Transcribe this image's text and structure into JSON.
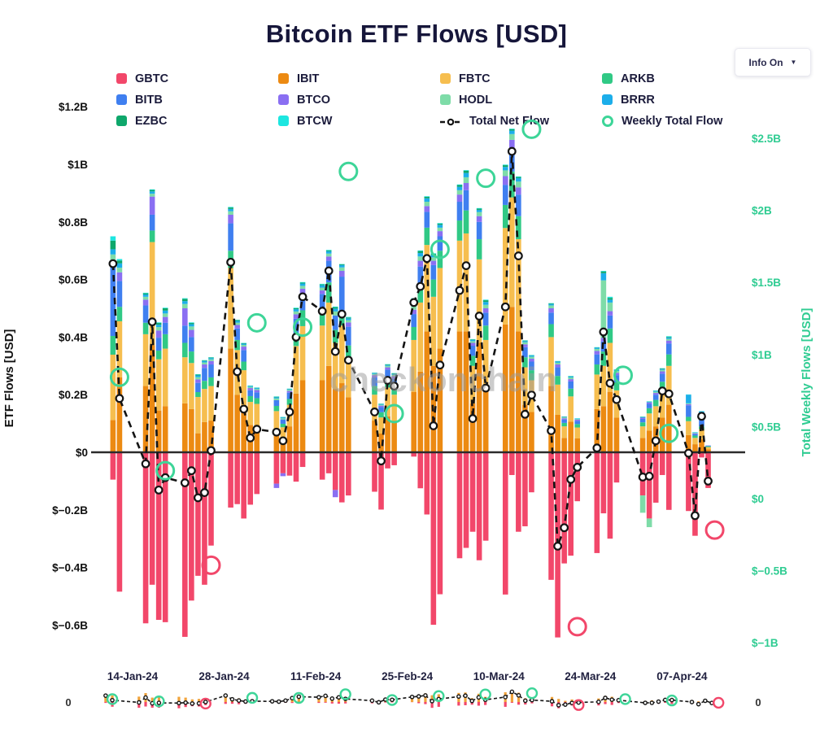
{
  "header": {
    "title": "Bitcoin ETF Flows [USD]",
    "info_button": "Info On",
    "dropdown_arrow": "▼"
  },
  "watermark": "checkonchain",
  "colors": {
    "gbtc": "#F2476A",
    "ibit": "#EC8A12",
    "fbtc": "#F6BE4F",
    "arkb": "#30C985",
    "bitb": "#3F7FF0",
    "btco": "#8A6FF2",
    "hodl": "#7EDCA8",
    "brrr": "#1CAEEA",
    "ezbc": "#0EA76B",
    "btcw": "#1DE6E0",
    "net_line": "#141414",
    "weekly_positive": "#3DD598",
    "weekly_negative": "#F2476A",
    "right_axis_text": "#2FCC92",
    "dark_text": "#20203F",
    "watermark_gray": "#9a9a9a"
  },
  "legend": {
    "items": [
      {
        "label": "GBTC",
        "type": "square",
        "color": "#F2476A"
      },
      {
        "label": "IBIT",
        "type": "square",
        "color": "#EC8A12"
      },
      {
        "label": "FBTC",
        "type": "square",
        "color": "#F6BE4F"
      },
      {
        "label": "ARKB",
        "type": "square",
        "color": "#30C985"
      },
      {
        "label": "BITB",
        "type": "square",
        "color": "#3F7FF0"
      },
      {
        "label": "BTCO",
        "type": "square",
        "color": "#8A6FF2"
      },
      {
        "label": "HODL",
        "type": "square",
        "color": "#7EDCA8"
      },
      {
        "label": "BRRR",
        "type": "square",
        "color": "#1CAEEA"
      },
      {
        "label": "EZBC",
        "type": "square",
        "color": "#0EA76B"
      },
      {
        "label": "BTCW",
        "type": "square",
        "color": "#1DE6E0"
      },
      {
        "label": "Total Net Flow",
        "type": "line",
        "color": "#141414"
      },
      {
        "label": "Weekly Total Flow",
        "type": "circle",
        "color": "#3DD598"
      }
    ]
  },
  "navigator": {
    "left_label": "0",
    "right_label": "0"
  },
  "chart_data": {
    "type": "combo",
    "title": "Bitcoin ETF Flows [USD]",
    "units": "millions USD",
    "left_axis": {
      "title": "ETF Flows [USD]",
      "ticks": [
        {
          "label": "$1.2B",
          "value": 1200
        },
        {
          "label": "$1B",
          "value": 1000
        },
        {
          "label": "$0.8B",
          "value": 800
        },
        {
          "label": "$0.6B",
          "value": 600
        },
        {
          "label": "$0.4B",
          "value": 400
        },
        {
          "label": "$0.2B",
          "value": 200
        },
        {
          "label": "$0",
          "value": 0
        },
        {
          "label": "$−0.2B",
          "value": -200
        },
        {
          "label": "$−0.4B",
          "value": -400
        },
        {
          "label": "$−0.6B",
          "value": -600
        }
      ]
    },
    "right_axis": {
      "title": "Total Weekly Flows [USD]",
      "ticks": [
        {
          "label": "$2.5B",
          "value": 2500
        },
        {
          "label": "$2B",
          "value": 2000
        },
        {
          "label": "$1.5B",
          "value": 1500
        },
        {
          "label": "$1B",
          "value": 1000
        },
        {
          "label": "$0.5B",
          "value": 500
        },
        {
          "label": "$0",
          "value": 0
        },
        {
          "label": "$−0.5B",
          "value": -500
        },
        {
          "label": "$−1B",
          "value": -1000
        }
      ]
    },
    "x_axis": {
      "ticks": [
        {
          "label": "14-Jan-24",
          "date": "2024-01-14"
        },
        {
          "label": "28-Jan-24",
          "date": "2024-01-28"
        },
        {
          "label": "11-Feb-24",
          "date": "2024-02-11"
        },
        {
          "label": "25-Feb-24",
          "date": "2024-02-25"
        },
        {
          "label": "10-Mar-24",
          "date": "2024-03-10"
        },
        {
          "label": "24-Mar-24",
          "date": "2024-03-24"
        },
        {
          "label": "07-Apr-24",
          "date": "2024-04-07"
        }
      ]
    },
    "stack_order": [
      "gbtc",
      "ibit",
      "fbtc",
      "arkb",
      "bitb",
      "btco",
      "hodl",
      "brrr",
      "ezbc",
      "btcw"
    ],
    "days_columns": [
      "date",
      "gbtc",
      "ibit",
      "fbtc",
      "arkb",
      "bitb",
      "btco",
      "hodl",
      "brrr",
      "ezbc",
      "btcw",
      "net"
    ],
    "days": [
      [
        "2024-01-11",
        -95,
        112,
        227,
        65,
        238,
        25,
        20,
        18,
        30,
        15,
        655
      ],
      [
        "2024-01-12",
        -484,
        260,
        195,
        50,
        90,
        30,
        16,
        15,
        10,
        5,
        187
      ],
      [
        "2024-01-16",
        -594,
        230,
        180,
        40,
        60,
        20,
        10,
        8,
        4,
        2,
        -40
      ],
      [
        "2024-01-17",
        -460,
        372,
        358,
        40,
        55,
        63,
        10,
        8,
        5,
        2,
        453
      ],
      [
        "2024-01-18",
        -582,
        145,
        178,
        30,
        45,
        25,
        12,
        8,
        6,
        2,
        -131
      ],
      [
        "2024-01-19",
        -590,
        160,
        200,
        50,
        40,
        20,
        12,
        10,
        8,
        2,
        -88
      ],
      [
        "2024-01-22",
        -641,
        170,
        160,
        50,
        60,
        60,
        15,
        10,
        8,
        2,
        -106
      ],
      [
        "2024-01-23",
        -515,
        150,
        160,
        40,
        50,
        25,
        12,
        8,
        4,
        2,
        -64
      ],
      [
        "2024-01-24",
        -429,
        66,
        126,
        17,
        32,
        12,
        8,
        6,
        3,
        1,
        -158
      ],
      [
        "2024-01-25",
        -460,
        105,
        115,
        28,
        45,
        12,
        7,
        5,
        2,
        1,
        -140
      ],
      [
        "2024-01-26",
        -324,
        110,
        120,
        30,
        45,
        12,
        6,
        4,
        2,
        1,
        6
      ],
      [
        "2024-01-29",
        -192,
        360,
        280,
        60,
        95,
        30,
        12,
        8,
        5,
        2,
        660
      ],
      [
        "2024-01-30",
        -180,
        200,
        155,
        35,
        40,
        12,
        8,
        6,
        3,
        1,
        280
      ],
      [
        "2024-01-31",
        -230,
        160,
        125,
        30,
        40,
        12,
        6,
        4,
        2,
        1,
        150
      ],
      [
        "2024-02-01",
        -182,
        95,
        80,
        20,
        20,
        8,
        4,
        3,
        1,
        1,
        50
      ],
      [
        "2024-02-02",
        -145,
        90,
        78,
        20,
        20,
        8,
        4,
        3,
        1,
        1,
        80
      ],
      [
        "2024-02-05",
        -109,
        75,
        68,
        18,
        20,
        -15,
        6,
        4,
        2,
        1,
        70
      ],
      [
        "2024-02-06",
        -73,
        45,
        42,
        12,
        15,
        -10,
        4,
        3,
        1,
        1,
        40
      ],
      [
        "2024-02-07",
        -81,
        90,
        75,
        20,
        22,
        6,
        4,
        2,
        1,
        1,
        140
      ],
      [
        "2024-02-08",
        -102,
        204,
        165,
        45,
        50,
        15,
        10,
        8,
        3,
        2,
        400
      ],
      [
        "2024-02-09",
        -51,
        250,
        188,
        55,
        60,
        15,
        10,
        8,
        3,
        2,
        540
      ],
      [
        "2024-02-12",
        -95,
        250,
        190,
        55,
        55,
        12,
        10,
        8,
        3,
        2,
        490
      ],
      [
        "2024-02-13",
        -73,
        300,
        220,
        70,
        75,
        15,
        10,
        8,
        3,
        2,
        630
      ],
      [
        "2024-02-14",
        -131,
        220,
        160,
        45,
        50,
        -25,
        14,
        10,
        5,
        2,
        350
      ],
      [
        "2024-02-15",
        -174,
        240,
        200,
        50,
        120,
        20,
        12,
        8,
        3,
        1,
        480
      ],
      [
        "2024-02-16",
        -150,
        191,
        140,
        40,
        65,
        15,
        8,
        6,
        3,
        2,
        320
      ],
      [
        "2024-02-20",
        -137,
        110,
        90,
        30,
        30,
        8,
        4,
        3,
        1,
        1,
        140
      ],
      [
        "2024-02-21",
        -199,
        65,
        56,
        18,
        18,
        5,
        3,
        2,
        1,
        1,
        -30
      ],
      [
        "2024-02-22",
        -56,
        125,
        100,
        30,
        32,
        8,
        5,
        3,
        2,
        1,
        250
      ],
      [
        "2024-02-23",
        -45,
        110,
        90,
        28,
        28,
        8,
        5,
        3,
        2,
        1,
        230
      ],
      [
        "2024-02-26",
        -15,
        210,
        180,
        45,
        45,
        15,
        12,
        20,
        6,
        2,
        520
      ],
      [
        "2024-02-27",
        -125,
        280,
        240,
        60,
        65,
        20,
        15,
        12,
        7,
        2,
        576
      ],
      [
        "2024-02-28",
        -216,
        420,
        300,
        60,
        55,
        20,
        15,
        12,
        5,
        2,
        673
      ],
      [
        "2024-02-29",
        -599,
        300,
        240,
        60,
        50,
        15,
        12,
        8,
        4,
        2,
        92
      ],
      [
        "2024-03-01",
        -493,
        360,
        280,
        60,
        50,
        18,
        12,
        10,
        4,
        2,
        303
      ],
      [
        "2024-03-04",
        -368,
        420,
        315,
        70,
        65,
        25,
        15,
        12,
        6,
        2,
        562
      ],
      [
        "2024-03-05",
        -332,
        420,
        340,
        80,
        70,
        25,
        20,
        15,
        8,
        2,
        648
      ],
      [
        "2024-03-06",
        -276,
        170,
        130,
        35,
        35,
        10,
        6,
        4,
        2,
        1,
        117
      ],
      [
        "2024-03-07",
        -375,
        380,
        290,
        70,
        60,
        20,
        14,
        8,
        4,
        2,
        473
      ],
      [
        "2024-03-08",
        -307,
        220,
        170,
        50,
        45,
        15,
        12,
        10,
        6,
        2,
        223
      ],
      [
        "2024-03-11",
        -494,
        444,
        335,
        80,
        70,
        30,
        20,
        12,
        6,
        2,
        505
      ],
      [
        "2024-03-12",
        -79,
        505,
        380,
        90,
        80,
        30,
        20,
        12,
        5,
        2,
        1045
      ],
      [
        "2024-03-13",
        -276,
        420,
        320,
        80,
        75,
        25,
        20,
        12,
        4,
        2,
        682
      ],
      [
        "2024-03-14",
        -257,
        165,
        130,
        35,
        35,
        10,
        7,
        4,
        2,
        1,
        132
      ],
      [
        "2024-03-15",
        -139,
        140,
        110,
        35,
        30,
        10,
        7,
        4,
        1,
        1,
        199
      ],
      [
        "2024-03-18",
        -443,
        230,
        170,
        45,
        40,
        15,
        10,
        5,
        2,
        1,
        75
      ],
      [
        "2024-03-19",
        -643,
        130,
        105,
        30,
        30,
        10,
        6,
        4,
        1,
        1,
        -326
      ],
      [
        "2024-03-20",
        -386,
        50,
        40,
        12,
        12,
        4,
        3,
        2,
        1,
        0,
        -262
      ],
      [
        "2024-03-21",
        -359,
        106,
        88,
        27,
        25,
        8,
        6,
        3,
        1,
        1,
        -94
      ],
      [
        "2024-03-22",
        -170,
        48,
        38,
        12,
        11,
        4,
        2,
        2,
        0,
        1,
        -52
      ],
      [
        "2024-03-25",
        -350,
        150,
        120,
        35,
        35,
        12,
        7,
        4,
        1,
        1,
        15
      ],
      [
        "2024-03-26",
        -212,
        160,
        140,
        50,
        35,
        12,
        200,
        25,
        6,
        2,
        418
      ],
      [
        "2024-03-27",
        -300,
        210,
        170,
        50,
        45,
        15,
        30,
        10,
        6,
        4,
        240
      ],
      [
        "2024-03-28",
        -105,
        120,
        95,
        28,
        25,
        8,
        6,
        4,
        1,
        1,
        183
      ],
      [
        "2024-04-01",
        -150,
        50,
        40,
        14,
        12,
        4,
        -60,
        2,
        1,
        1,
        -86
      ],
      [
        "2024-04-02",
        -230,
        75,
        60,
        18,
        15,
        5,
        -30,
        2,
        1,
        1,
        -83
      ],
      [
        "2024-04-03",
        -175,
        90,
        70,
        22,
        18,
        6,
        4,
        3,
        1,
        1,
        40
      ],
      [
        "2024-04-04",
        -79,
        120,
        95,
        30,
        28,
        8,
        5,
        3,
        2,
        1,
        213
      ],
      [
        "2024-04-05",
        -200,
        165,
        135,
        40,
        38,
        10,
        6,
        5,
        2,
        2,
        203
      ],
      [
        "2024-04-08",
        -204,
        60,
        48,
        15,
        40,
        4,
        3,
        30,
        0,
        1,
        -3
      ],
      [
        "2024-04-09",
        -290,
        28,
        22,
        8,
        6,
        2,
        2,
        1,
        0,
        1,
        -220
      ],
      [
        "2024-04-10",
        -18,
        45,
        35,
        10,
        35,
        3,
        2,
        12,
        0,
        1,
        125
      ],
      [
        "2024-04-11",
        -124,
        10,
        8,
        3,
        2,
        1,
        0,
        0,
        0,
        0,
        -100
      ]
    ],
    "weekly_columns": [
      "week_ending",
      "total",
      "sign"
    ],
    "weekly": [
      [
        "2024-01-12",
        842,
        "positive"
      ],
      [
        "2024-01-19",
        194,
        "positive"
      ],
      [
        "2024-01-26",
        -462,
        "negative"
      ],
      [
        "2024-02-02",
        1220,
        "positive"
      ],
      [
        "2024-02-09",
        1190,
        "positive"
      ],
      [
        "2024-02-16",
        2270,
        "positive"
      ],
      [
        "2024-02-23",
        590,
        "positive"
      ],
      [
        "2024-03-01",
        1730,
        "positive"
      ],
      [
        "2024-03-08",
        2223,
        "positive"
      ],
      [
        "2024-03-15",
        2563,
        "positive"
      ],
      [
        "2024-03-22",
        -888,
        "negative"
      ],
      [
        "2024-03-29",
        856,
        "positive"
      ],
      [
        "2024-04-05",
        453,
        "positive"
      ],
      [
        "2024-04-12",
        -218,
        "negative"
      ]
    ]
  }
}
